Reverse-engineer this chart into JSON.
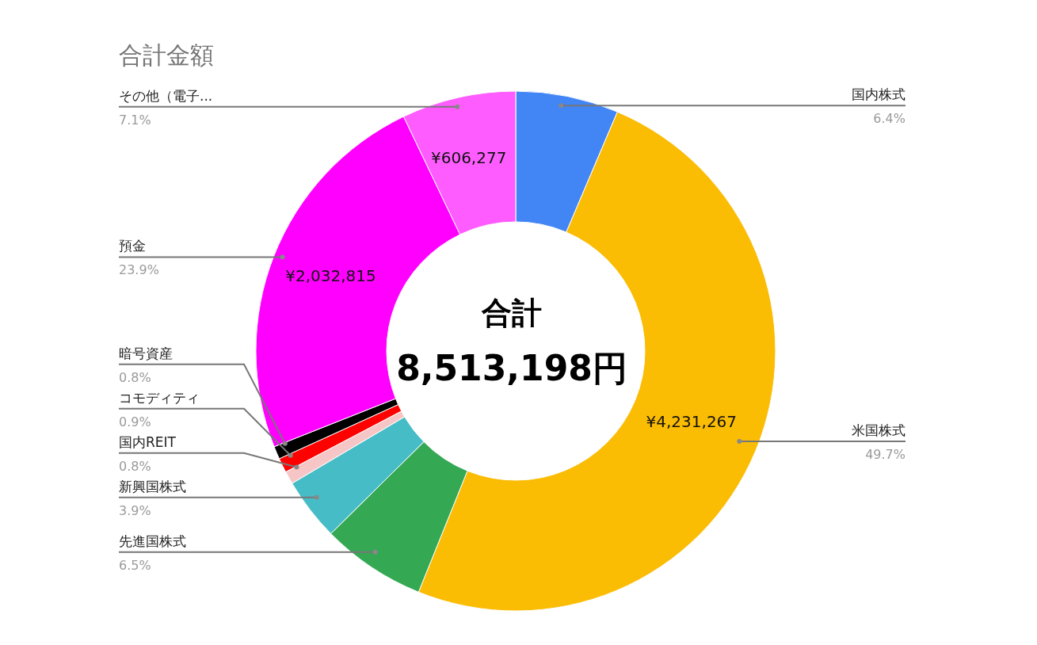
{
  "chart_data": {
    "type": "donut",
    "title": "合計金額",
    "categories": [
      "国内株式",
      "米国株式",
      "先進国株式",
      "新興国株式",
      "国内REIT",
      "コモディティ",
      "暗号資産",
      "預金",
      "その他（電子..."
    ],
    "values": [
      6.4,
      49.7,
      6.5,
      3.9,
      0.8,
      0.9,
      0.8,
      23.9,
      7.1
    ],
    "colors": [
      "#4285f4",
      "#fbbc04",
      "#34a853",
      "#46bdc6",
      "#f6c6c6",
      "#ff0000",
      "#000000",
      "#ff00ff",
      "#ff5cff"
    ],
    "value_labels": [
      "6.4%",
      "49.7%",
      "6.5%",
      "3.9%",
      "0.8%",
      "0.9%",
      "0.8%",
      "23.9%",
      "7.1%"
    ],
    "legend": false,
    "annotations": [
      "合計",
      "8,513,198円",
      {
        "text": "¥4,231,267",
        "x": "米国株式"
      },
      {
        "text": "¥2,032,815",
        "x": "預金"
      },
      {
        "text": "¥606,277",
        "x": "その他（電子..."
      }
    ]
  }
}
